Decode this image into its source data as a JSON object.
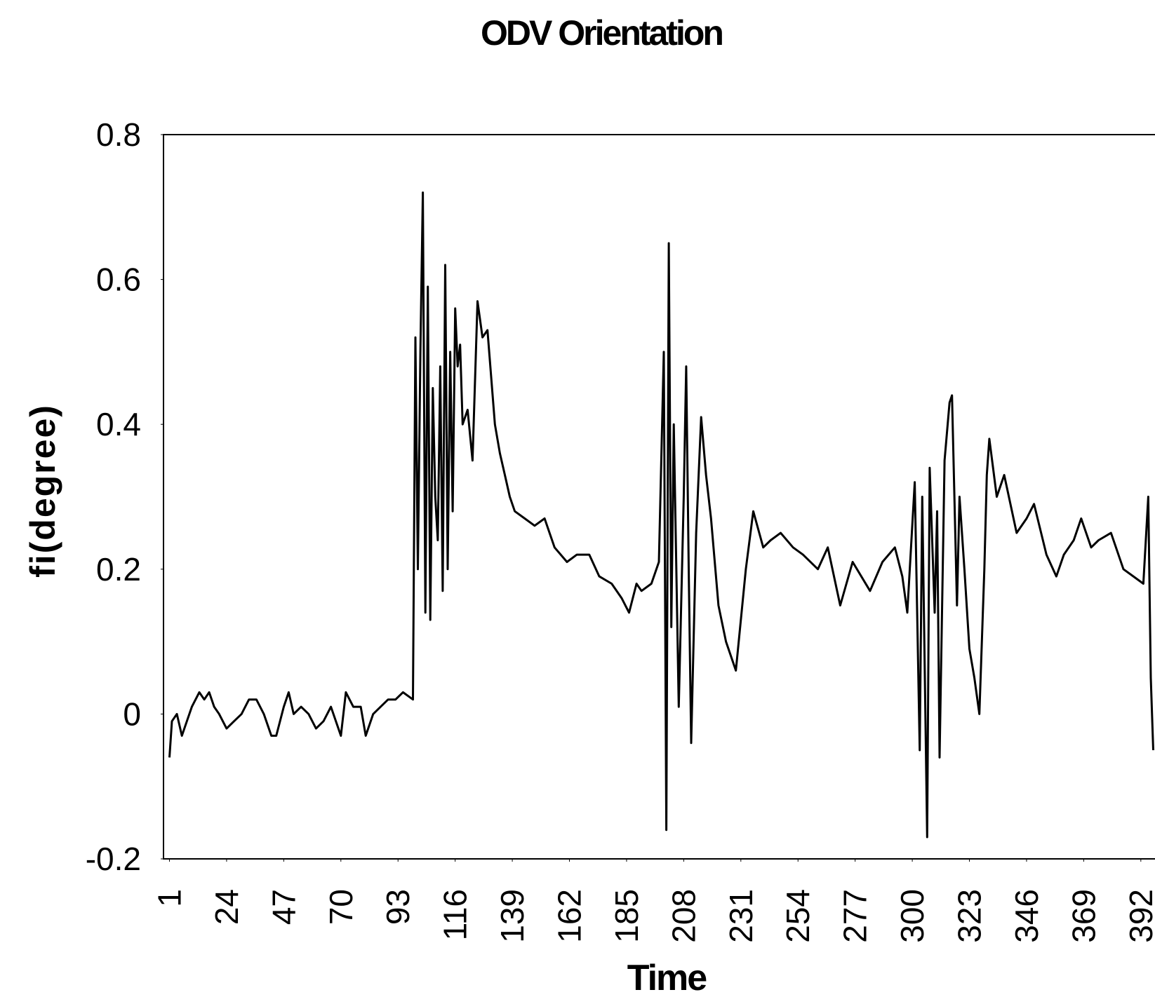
{
  "chart_data": {
    "type": "line",
    "title": "ODV Orientation",
    "x_label": "Time",
    "y_label": "fi(degree)",
    "color": "#000000",
    "x": [
      1,
      2,
      4,
      6,
      8,
      10,
      13,
      15,
      17,
      19,
      21,
      24,
      27,
      30,
      33,
      36,
      39,
      42,
      44,
      47,
      49,
      51,
      54,
      57,
      60,
      63,
      66,
      68,
      70,
      72,
      75,
      78,
      80,
      83,
      86,
      89,
      92,
      95,
      99,
      100,
      101,
      102,
      103,
      104,
      105,
      106,
      107,
      108,
      109,
      110,
      111,
      112,
      113,
      114,
      115,
      116,
      117,
      118,
      119,
      121,
      123,
      125,
      127,
      129,
      132,
      134,
      136,
      138,
      140,
      144,
      148,
      152,
      156,
      161,
      165,
      170,
      174,
      179,
      183,
      186,
      189,
      191,
      195,
      198,
      200,
      201,
      202,
      203,
      204,
      206,
      208,
      209,
      210,
      211,
      213,
      215,
      217,
      219,
      222,
      225,
      229,
      233,
      236,
      240,
      243,
      247,
      252,
      256,
      262,
      266,
      271,
      276,
      283,
      288,
      293,
      296,
      298,
      301,
      303,
      304,
      306,
      307,
      309,
      310,
      311,
      313,
      315,
      316,
      318,
      319,
      321,
      323,
      325,
      327,
      329,
      330,
      331,
      334,
      337,
      342,
      346,
      349,
      354,
      358,
      361,
      365,
      368,
      372,
      375,
      380,
      385,
      389,
      393,
      395,
      396,
      397
    ],
    "values": [
      -0.06,
      -0.01,
      0.0,
      -0.03,
      -0.01,
      0.01,
      0.03,
      0.02,
      0.03,
      0.01,
      0.0,
      -0.02,
      -0.01,
      0.0,
      0.02,
      0.02,
      0.0,
      -0.03,
      -0.03,
      0.01,
      0.03,
      0.0,
      0.01,
      0.0,
      -0.02,
      -0.01,
      0.01,
      -0.01,
      -0.03,
      0.03,
      0.01,
      0.01,
      -0.03,
      0.0,
      0.01,
      0.02,
      0.02,
      0.03,
      0.02,
      0.52,
      0.2,
      0.5,
      0.72,
      0.14,
      0.59,
      0.13,
      0.45,
      0.3,
      0.24,
      0.48,
      0.17,
      0.62,
      0.2,
      0.5,
      0.28,
      0.56,
      0.48,
      0.51,
      0.4,
      0.42,
      0.35,
      0.57,
      0.52,
      0.53,
      0.4,
      0.36,
      0.33,
      0.3,
      0.28,
      0.27,
      0.26,
      0.27,
      0.23,
      0.21,
      0.22,
      0.22,
      0.19,
      0.18,
      0.16,
      0.14,
      0.18,
      0.17,
      0.18,
      0.21,
      0.5,
      -0.16,
      0.65,
      0.12,
      0.4,
      0.01,
      0.3,
      0.48,
      0.2,
      -0.04,
      0.25,
      0.41,
      0.33,
      0.27,
      0.15,
      0.1,
      0.06,
      0.2,
      0.28,
      0.23,
      0.24,
      0.25,
      0.23,
      0.22,
      0.2,
      0.23,
      0.15,
      0.21,
      0.17,
      0.21,
      0.23,
      0.19,
      0.14,
      0.32,
      -0.05,
      0.3,
      -0.17,
      0.34,
      0.14,
      0.28,
      -0.06,
      0.35,
      0.43,
      0.44,
      0.15,
      0.3,
      0.2,
      0.09,
      0.05,
      0.0,
      0.2,
      0.33,
      0.38,
      0.3,
      0.33,
      0.25,
      0.27,
      0.29,
      0.22,
      0.19,
      0.22,
      0.24,
      0.27,
      0.23,
      0.24,
      0.25,
      0.2,
      0.19,
      0.18,
      0.3,
      0.05,
      -0.05
    ],
    "xlim": [
      -1.4,
      397.7
    ],
    "xticks": [
      1,
      24,
      47,
      70,
      93,
      116,
      139,
      162,
      185,
      208,
      231,
      254,
      277,
      300,
      323,
      346,
      369,
      392
    ],
    "ylim": [
      -0.2,
      0.8
    ],
    "yticks": [
      -0.2,
      0,
      0.2,
      0.4,
      0.6,
      0.8
    ]
  }
}
